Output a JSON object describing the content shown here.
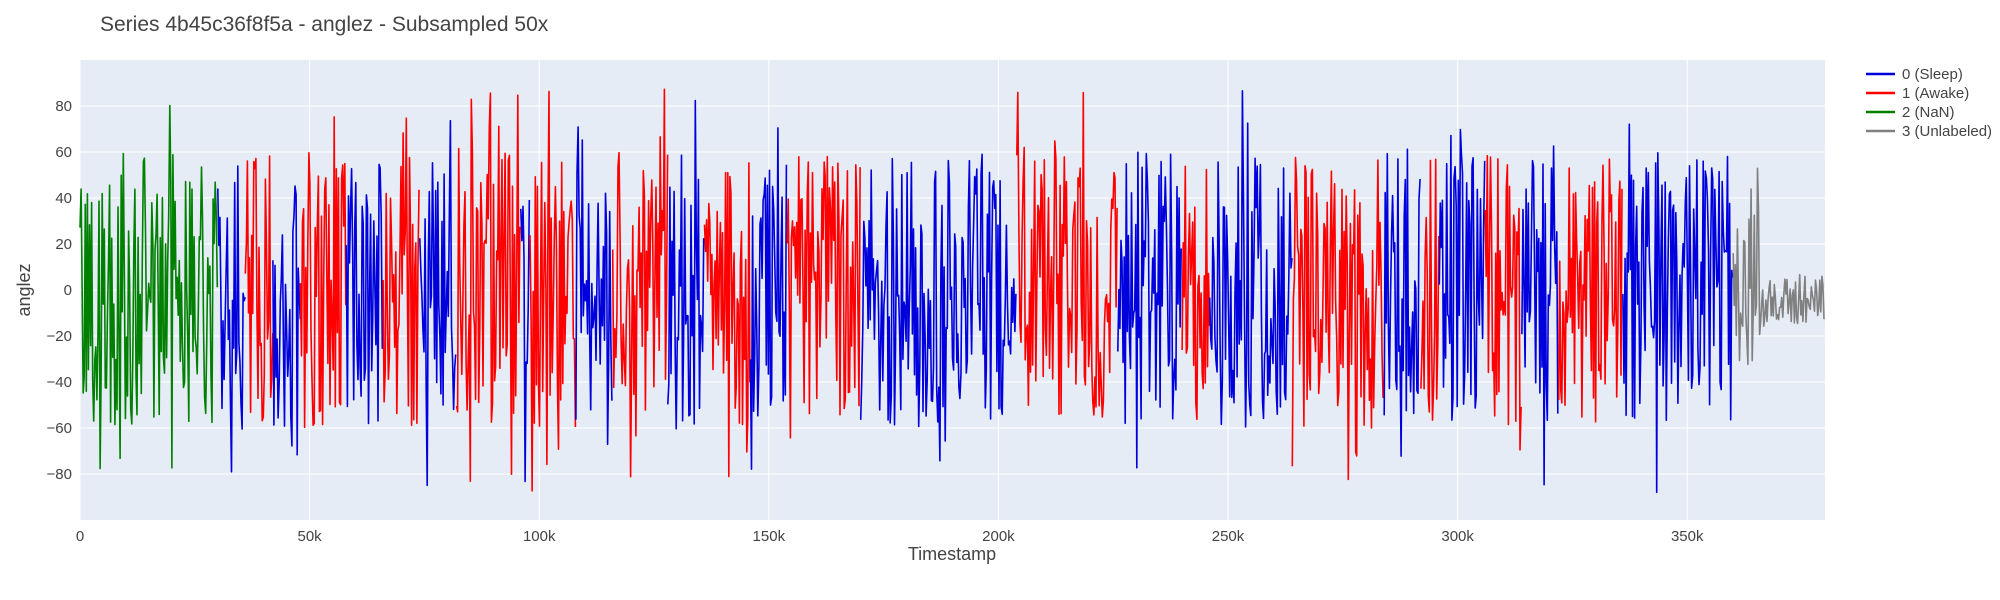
{
  "chart_data": {
    "type": "line",
    "title": "Series 4b45c36f8f5a - anglez - Subsampled 50x",
    "xlabel": "Timestamp",
    "ylabel": "anglez",
    "xlim": [
      0,
      380000
    ],
    "ylim": [
      -100,
      100
    ],
    "x_ticks": [
      {
        "value": 0,
        "label": "0"
      },
      {
        "value": 50000,
        "label": "50k"
      },
      {
        "value": 100000,
        "label": "100k"
      },
      {
        "value": 150000,
        "label": "150k"
      },
      {
        "value": 200000,
        "label": "200k"
      },
      {
        "value": 250000,
        "label": "250k"
      },
      {
        "value": 300000,
        "label": "300k"
      },
      {
        "value": 350000,
        "label": "350k"
      }
    ],
    "y_ticks": [
      {
        "value": 80,
        "label": "80"
      },
      {
        "value": 60,
        "label": "60"
      },
      {
        "value": 40,
        "label": "40"
      },
      {
        "value": 20,
        "label": "20"
      },
      {
        "value": 0,
        "label": "0"
      },
      {
        "value": -20,
        "label": "−20"
      },
      {
        "value": -40,
        "label": "−40"
      },
      {
        "value": -60,
        "label": "−60"
      },
      {
        "value": -80,
        "label": "−80"
      }
    ],
    "grid": true,
    "legend_position": "top-right, outside plot",
    "plot_background": "#e5ecf6",
    "series": [
      {
        "name": "0 (Sleep)",
        "color": "#0000dd",
        "segments": [
          [
            30000,
            36000
          ],
          [
            42000,
            48000
          ],
          [
            58000,
            66000
          ],
          [
            74000,
            82000
          ],
          [
            96000,
            98000
          ],
          [
            108000,
            116000
          ],
          [
            128000,
            136000
          ],
          [
            146000,
            154000
          ],
          [
            170000,
            204000
          ],
          [
            226000,
            240000
          ],
          [
            246000,
            264000
          ],
          [
            284000,
            292000
          ],
          [
            296000,
            306000
          ],
          [
            314000,
            322000
          ],
          [
            336000,
            360000
          ]
        ]
      },
      {
        "name": "1 (Awake)",
        "color": "#ff0000",
        "segments": [
          [
            36000,
            42000
          ],
          [
            48000,
            58000
          ],
          [
            66000,
            74000
          ],
          [
            82000,
            96000
          ],
          [
            98000,
            108000
          ],
          [
            116000,
            128000
          ],
          [
            136000,
            146000
          ],
          [
            154000,
            170000
          ],
          [
            204000,
            226000
          ],
          [
            240000,
            246000
          ],
          [
            264000,
            284000
          ],
          [
            292000,
            296000
          ],
          [
            306000,
            314000
          ],
          [
            322000,
            336000
          ]
        ]
      },
      {
        "name": "2 (NaN)",
        "color": "#008000",
        "segments": [
          [
            0,
            30000
          ]
        ]
      },
      {
        "name": "3 (Unlabeled)",
        "color": "#808080",
        "segments": [
          [
            360000,
            380000
          ]
        ]
      }
    ]
  }
}
